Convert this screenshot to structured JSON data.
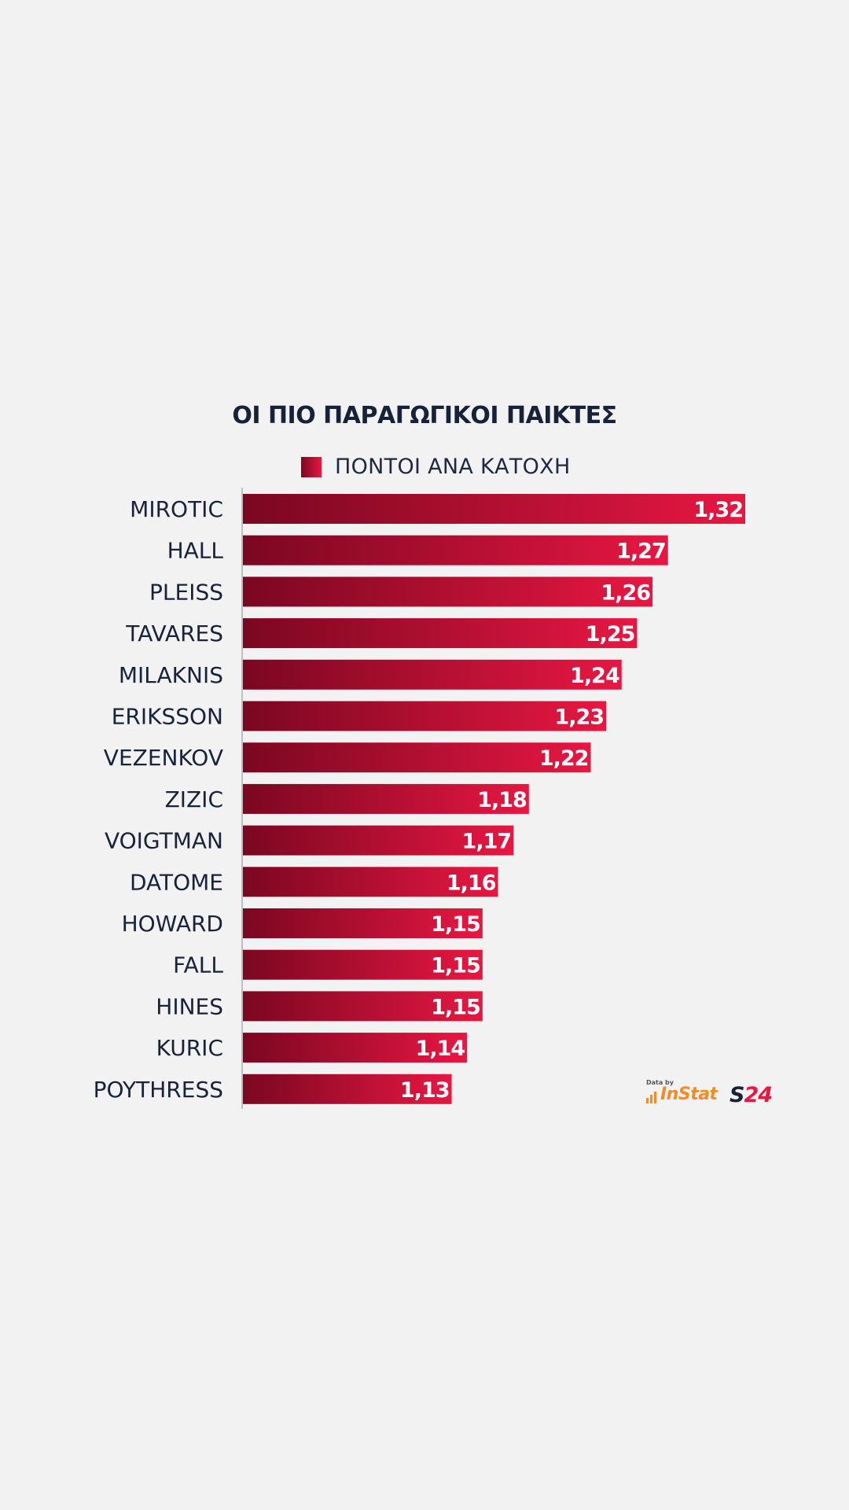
{
  "chart_data": {
    "type": "bar",
    "orientation": "horizontal",
    "title": "ΟΙ ΠΙΟ ΠΑΡΑΓΩΓΙΚΟΙ ΠΑΙΚΤΕΣ",
    "legend": {
      "placement": "top",
      "entries": [
        "ΠΟΝΤΟΙ ΑΝΑ ΚΑΤΟΧΗ"
      ]
    },
    "categories": [
      "MIROTIC",
      "HALL",
      "PLEISS",
      "TAVARES",
      "MILAKNIS",
      "ERIKSSON",
      "VEZENKOV",
      "ZIZIC",
      "VOIGTMAN",
      "DATOME",
      "HOWARD",
      "FALL",
      "HINES",
      "KURIC",
      "POYTHRESS"
    ],
    "values": [
      1.32,
      1.27,
      1.26,
      1.25,
      1.24,
      1.23,
      1.22,
      1.18,
      1.17,
      1.16,
      1.15,
      1.15,
      1.15,
      1.14,
      1.13
    ],
    "value_labels": [
      "1,32",
      "1,27",
      "1,26",
      "1,25",
      "1,24",
      "1,23",
      "1,22",
      "1,18",
      "1,17",
      "1,16",
      "1,15",
      "1,15",
      "1,15",
      "1,14",
      "1,13"
    ],
    "xlim": [
      1.0,
      1.32
    ],
    "grid": false,
    "colors": {
      "bar_start": "#7a0721",
      "bar_end": "#e81742",
      "label": "#17233a",
      "value_text": "#ffffff"
    }
  },
  "logo": {
    "caption": "Data by",
    "instat": "InStat",
    "s24_s": "S",
    "s24_num": "24",
    "colors": {
      "instat": "#f28c28",
      "s24_s": "#15223a",
      "s24_num": "#e81742"
    }
  }
}
